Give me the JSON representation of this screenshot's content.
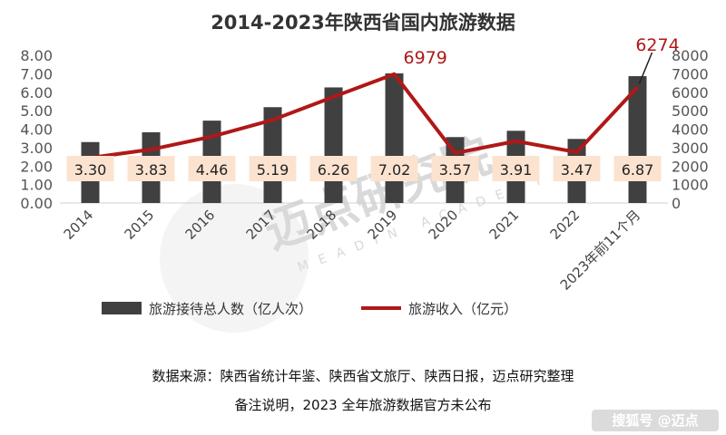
{
  "chart_data": {
    "type": "bar",
    "title": "2014-2023年陕西省国内旅游数据",
    "categories": [
      "2014",
      "2015",
      "2016",
      "2017",
      "2018",
      "2019",
      "2020",
      "2021",
      "2022",
      "2023年前11个月"
    ],
    "series": [
      {
        "name": "旅游接待总人数（亿人次）",
        "type": "bar",
        "axis": "left",
        "color": "#404040",
        "values": [
          3.3,
          3.83,
          4.46,
          5.19,
          6.26,
          7.02,
          3.57,
          3.91,
          3.47,
          6.87
        ],
        "labels": [
          "3.30",
          "3.83",
          "4.46",
          "5.19",
          "6.26",
          "7.02",
          "3.57",
          "3.91",
          "3.47",
          "6.87"
        ]
      },
      {
        "name": "旅游收入（亿元）",
        "type": "line",
        "axis": "right",
        "color": "#b01818",
        "values": [
          2450,
          2900,
          3600,
          4500,
          5750,
          6979,
          2700,
          3350,
          2750,
          6274
        ],
        "labeled": {
          "5": "6979",
          "9": "6274"
        }
      }
    ],
    "y_left": {
      "min": 0,
      "max": 8,
      "ticks": [
        "0.00",
        "1.00",
        "2.00",
        "3.00",
        "4.00",
        "5.00",
        "6.00",
        "7.00",
        "8.00"
      ]
    },
    "y_right": {
      "min": 0,
      "max": 8000,
      "ticks": [
        "0",
        "1000",
        "2000",
        "3000",
        "4000",
        "5000",
        "6000",
        "7000",
        "8000"
      ]
    },
    "legend_position": "bottom"
  },
  "source": {
    "line1": "数据来源：陕西省统计年鉴、陕西省文旅厅、陕西日报，迈点研究整理",
    "line2": "备注说明，2023 全年旅游数据官方未公布"
  },
  "watermark": {
    "main": "迈点研究院",
    "sub": "MEADIN ACADEMY",
    "corner": "搜狐号 @迈点"
  }
}
